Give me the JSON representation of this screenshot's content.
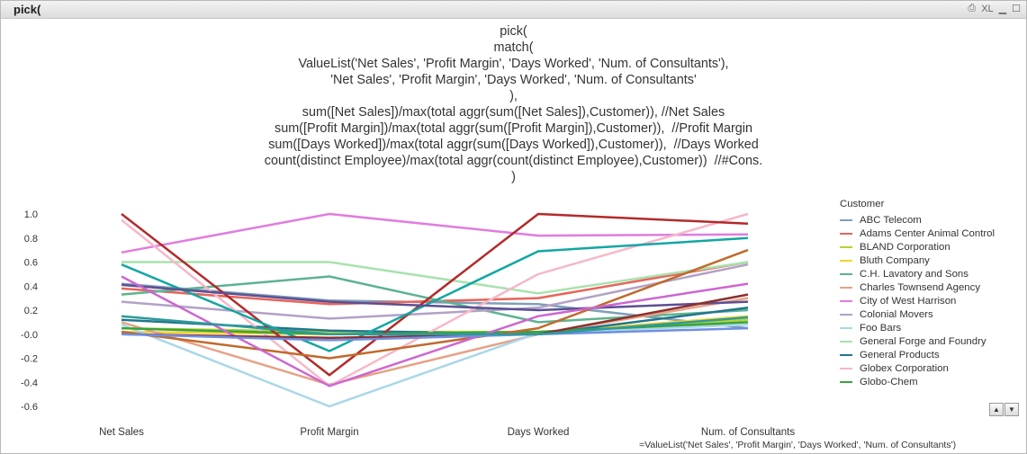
{
  "window": {
    "title": "pick(",
    "icons": [
      "print-icon",
      "xl-icon",
      "minimize-icon",
      "maximize-icon"
    ],
    "xl_label": "XL"
  },
  "formula_lines": [
    "pick(",
    "match(",
    "ValueList('Net Sales', 'Profit Margin', 'Days Worked', 'Num. of Consultants'),",
    "'Net Sales', 'Profit Margin', 'Days Worked', 'Num. of Consultants'",
    "),",
    "sum([Net Sales])/max(total aggr(sum([Net Sales]),Customer)), //Net Sales",
    "sum([Profit Margin])/max(total aggr(sum([Profit Margin]),Customer)),  //Profit Margin",
    "sum([Days Worked])/max(total aggr(sum([Days Worked]),Customer)),  //Days Worked",
    "count(distinct Employee)/max(total aggr(count(distinct Employee),Customer))  //#Cons.",
    ")"
  ],
  "dimension_label": "=ValueList('Net Sales', 'Profit Margin', 'Days Worked', 'Num. of Consultants')",
  "legend": {
    "title": "Customer"
  },
  "scroll": {
    "up": "▲",
    "down": "▼"
  },
  "chart_data": {
    "type": "line",
    "categories": [
      "Net Sales",
      "Profit Margin",
      "Days Worked",
      "Num. of Consultants"
    ],
    "y_ticks": [
      "1.0",
      "0.8",
      "0.6",
      "0.4",
      "0.2",
      "-0.0",
      "-0.2",
      "-0.4",
      "-0.6"
    ],
    "ylim": [
      -0.6,
      1.0
    ],
    "legend_placement": "right",
    "grid": false,
    "series": [
      {
        "name": "ABC Telecom",
        "color": "#7f9fb8",
        "values": [
          0.42,
          0.28,
          0.25,
          0.05
        ]
      },
      {
        "name": "Adams Center Animal Control",
        "color": "#e8645a",
        "values": [
          0.38,
          0.25,
          0.3,
          0.6
        ]
      },
      {
        "name": "BLAND Corporation",
        "color": "#b5d334",
        "values": [
          0.05,
          0.02,
          0.02,
          0.12
        ]
      },
      {
        "name": "Bluth Company",
        "color": "#f3d230",
        "values": [
          0.02,
          0.0,
          0.01,
          0.15
        ]
      },
      {
        "name": "C.H. Lavatory and Sons",
        "color": "#5db38f",
        "values": [
          0.33,
          0.48,
          0.1,
          0.2
        ]
      },
      {
        "name": "Charles Townsend Agency",
        "color": "#e6a286",
        "values": [
          0.1,
          -0.42,
          0.0,
          0.3
        ]
      },
      {
        "name": "City of West Harrison",
        "color": "#e07ddf",
        "values": [
          0.68,
          1.0,
          0.82,
          0.83
        ]
      },
      {
        "name": "Colonial Movers",
        "color": "#b3a1c6",
        "values": [
          0.27,
          0.13,
          0.22,
          0.58
        ]
      },
      {
        "name": "Foo Bars",
        "color": "#a9d7e8",
        "values": [
          0.08,
          -0.6,
          0.01,
          0.08
        ]
      },
      {
        "name": "General Forge and Foundry",
        "color": "#a8e2ae",
        "values": [
          0.6,
          0.6,
          0.34,
          0.6
        ]
      },
      {
        "name": "General Products",
        "color": "#22768c",
        "values": [
          0.12,
          0.03,
          0.0,
          0.22
        ]
      },
      {
        "name": "Globex Corporation",
        "color": "#f6b8c9",
        "values": [
          0.95,
          -0.43,
          0.5,
          1.0
        ]
      },
      {
        "name": "Globo-Chem",
        "color": "#3aa33f",
        "values": [
          0.05,
          0.0,
          0.02,
          0.1
        ]
      },
      {
        "color": "#b32a2a",
        "values": [
          1.0,
          -0.34,
          1.0,
          0.92
        ]
      },
      {
        "color": "#12a7a3",
        "values": [
          0.58,
          -0.14,
          0.69,
          0.8
        ]
      },
      {
        "color": "#5c4f93",
        "values": [
          0.41,
          0.27,
          0.2,
          0.27
        ]
      },
      {
        "color": "#c06a2c",
        "values": [
          0.02,
          -0.2,
          0.05,
          0.7
        ]
      },
      {
        "color": "#cd66d0",
        "values": [
          0.48,
          -0.43,
          0.15,
          0.42
        ]
      },
      {
        "color": "#8b2f2f",
        "values": [
          0.0,
          -0.03,
          0.0,
          0.33
        ]
      },
      {
        "color": "#6f8fe0",
        "values": [
          0.0,
          -0.05,
          0.0,
          0.05
        ]
      },
      {
        "color": "#2e9a9a",
        "values": [
          0.15,
          0.0,
          0.0,
          0.14
        ]
      }
    ]
  }
}
